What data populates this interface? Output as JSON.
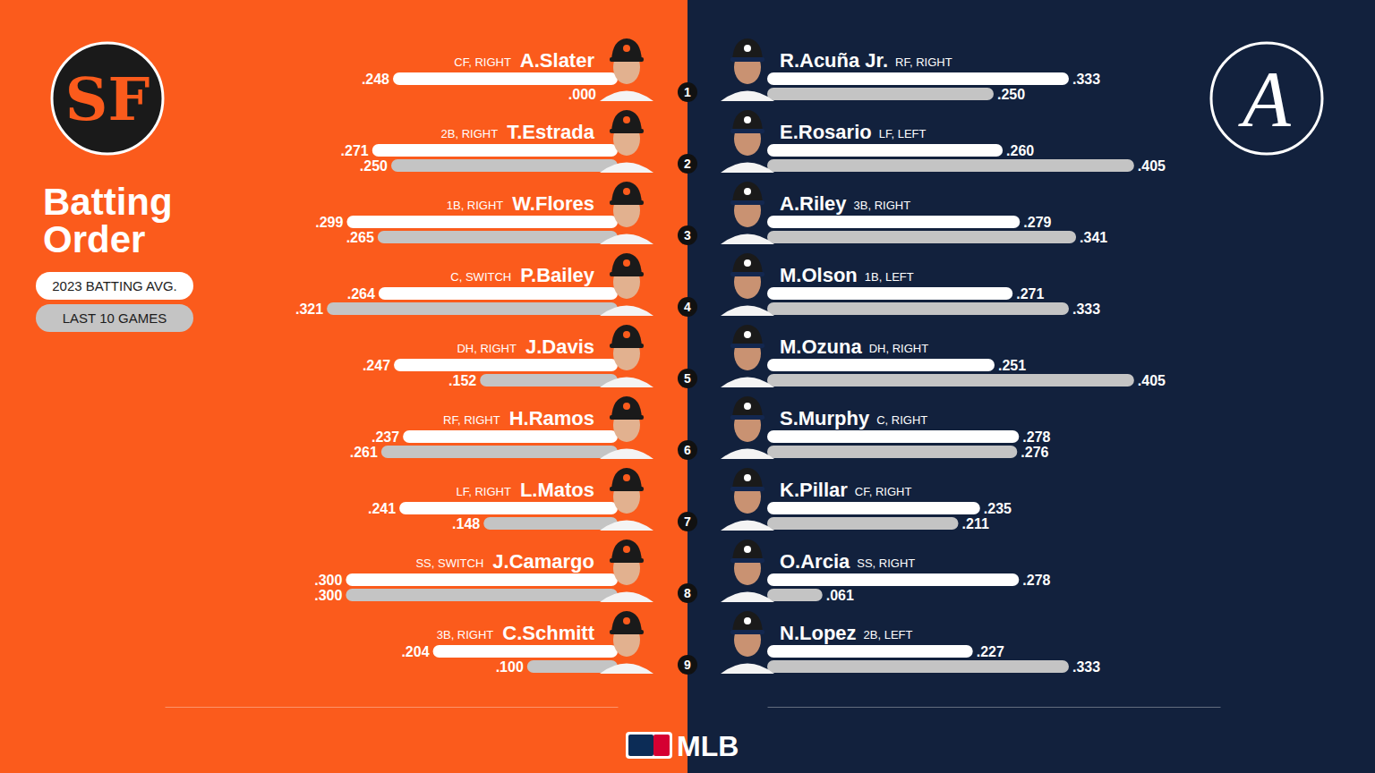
{
  "chart_data": [
    {
      "type": "bar",
      "title": "Batting Order",
      "logo": "SF",
      "orientation": "horizontal",
      "data_labels": true,
      "tick_labels": false,
      "legend": "left",
      "xlim": [
        0,
        0.5
      ],
      "categories": [
        "A.Slater",
        "T.Estrada",
        "W.Flores",
        "P.Bailey",
        "J.Davis",
        "H.Ramos",
        "L.Matos",
        "J.Camargo",
        "C.Schmitt"
      ],
      "positions": [
        "CF, RIGHT",
        "2B, RIGHT",
        "1B, RIGHT",
        "C, SWITCH",
        "DH, RIGHT",
        "RF, RIGHT",
        "LF, RIGHT",
        "SS, SWITCH",
        "3B, RIGHT"
      ],
      "series": [
        {
          "name": "2023 BATTING AVG.",
          "color": "#ffffff",
          "values": [
            0.248,
            0.271,
            0.299,
            0.264,
            0.247,
            0.237,
            0.241,
            0.3,
            0.204
          ],
          "value_labels": [
            ".248",
            ".271",
            ".299",
            ".264",
            ".247",
            ".237",
            ".241",
            ".300",
            ".204"
          ]
        },
        {
          "name": "LAST 10 GAMES",
          "color": "#c4c4c4",
          "values": [
            0.0,
            0.25,
            0.265,
            0.321,
            0.152,
            0.261,
            0.148,
            0.3,
            0.1
          ],
          "value_labels": [
            ".000",
            ".250",
            ".265",
            ".321",
            ".152",
            ".261",
            ".148",
            ".300",
            ".100"
          ]
        }
      ]
    },
    {
      "type": "bar",
      "logo": "A",
      "orientation": "horizontal",
      "data_labels": true,
      "tick_labels": false,
      "xlim": [
        0,
        0.5
      ],
      "categories": [
        "R.Acuña Jr.",
        "E.Rosario",
        "A.Riley",
        "M.Olson",
        "M.Ozuna",
        "S.Murphy",
        "K.Pillar",
        "O.Arcia",
        "N.Lopez"
      ],
      "positions": [
        "RF, RIGHT",
        "LF, LEFT",
        "3B, RIGHT",
        "1B, LEFT",
        "DH, RIGHT",
        "C, RIGHT",
        "CF, RIGHT",
        "SS, RIGHT",
        "2B, LEFT"
      ],
      "series": [
        {
          "color": "#ffffff",
          "values": [
            0.333,
            0.26,
            0.279,
            0.271,
            0.251,
            0.278,
            0.235,
            0.278,
            0.227
          ],
          "value_labels": [
            ".333",
            ".260",
            ".279",
            ".271",
            ".251",
            ".278",
            ".235",
            ".278",
            ".227"
          ]
        },
        {
          "color": "#c4c4c4",
          "values": [
            0.25,
            0.405,
            0.341,
            0.333,
            0.405,
            0.276,
            0.211,
            0.061,
            0.333
          ],
          "value_labels": [
            ".250",
            ".405",
            ".341",
            ".333",
            ".405",
            ".276",
            ".211",
            ".061",
            ".333"
          ]
        }
      ]
    }
  ],
  "batting_order": [
    1,
    2,
    3,
    4,
    5,
    6,
    7,
    8,
    9
  ],
  "footer": "MLB"
}
